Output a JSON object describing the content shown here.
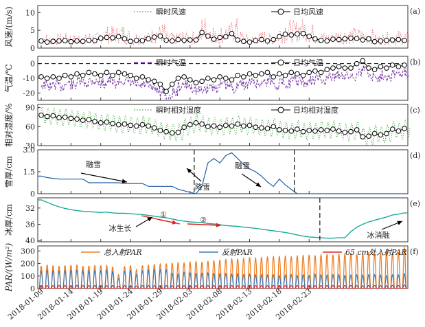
{
  "chart_data": [
    {
      "id": "a",
      "type": "line",
      "label": "(a)",
      "ylabel": "风速/(m/s)",
      "yticks": [
        "0",
        "5",
        "10"
      ],
      "ylim": [
        0,
        12
      ],
      "series": [
        {
          "name": "瞬时风速",
          "color": "#e0404a",
          "style": "dotted"
        },
        {
          "name": "日均风速",
          "color": "#000000",
          "style": "line-circle",
          "values": [
            2.0,
            1.7,
            1.9,
            2.0,
            2.1,
            1.8,
            2.0,
            1.9,
            2.2,
            2.1,
            2.8,
            3.0,
            2.9,
            3.2,
            2.6,
            1.9,
            2.2,
            2.1,
            2.6,
            3.1,
            3.4,
            2.2,
            2.0,
            2.4,
            2.2,
            2.3,
            2.3,
            4.4,
            3.4,
            2.5,
            3.0,
            3.2,
            4.1,
            2.3,
            1.9,
            1.7,
            2.1,
            2.4,
            2.0,
            2.4,
            3.2,
            3.9,
            3.7,
            4.0,
            4.1,
            3.3,
            2.6,
            2.2,
            2.0,
            2.5,
            2.4,
            2.6,
            2.8,
            2.7,
            2.3,
            2.6,
            1.8,
            2.0,
            2.2,
            2.3,
            2.4,
            2.2
          ]
        }
      ]
    },
    {
      "id": "b",
      "type": "line",
      "label": "(b)",
      "ylabel": "气温/℃",
      "yticks": [
        "0",
        "-10",
        "-20"
      ],
      "ylim": [
        -25,
        5
      ],
      "series": [
        {
          "name": "瞬时气温",
          "color": "#7030a0",
          "style": "dashed"
        },
        {
          "name": "日均气温",
          "color": "#000000",
          "style": "line-circle",
          "values": [
            -9,
            -10,
            -9,
            -10,
            -8,
            -9,
            -7,
            -8,
            -6,
            -7,
            -8,
            -6,
            -8,
            -6,
            -7,
            -8,
            -10,
            -9,
            -11,
            -12,
            -14,
            -19,
            -14,
            -10,
            -9,
            -11,
            -13,
            -12,
            -10,
            -11,
            -9,
            -10,
            -11,
            -8,
            -9,
            -7,
            -8,
            -7,
            -6,
            -9,
            -7,
            -8,
            -6,
            -7,
            -8,
            -6,
            -5,
            -6,
            -4,
            -3,
            -2,
            -3,
            -3,
            0,
            2,
            -3,
            -4,
            -2,
            -3,
            -1,
            -2,
            -1
          ]
        }
      ]
    },
    {
      "id": "c",
      "type": "line",
      "label": "(c)",
      "ylabel": "相对湿度/%",
      "yticks": [
        "30",
        "60",
        "90"
      ],
      "ylim": [
        30,
        95
      ],
      "series": [
        {
          "name": "瞬时相对湿度",
          "color": "#2ca02c",
          "style": "dotted"
        },
        {
          "name": "日均相对湿度",
          "color": "#000000",
          "style": "line-circle",
          "values": [
            78,
            76,
            77,
            74,
            75,
            73,
            72,
            70,
            71,
            68,
            66,
            67,
            65,
            63,
            64,
            62,
            61,
            63,
            61,
            58,
            54,
            52,
            50,
            51,
            59,
            63,
            66,
            64,
            60,
            61,
            59,
            62,
            61,
            64,
            61,
            62,
            59,
            58,
            57,
            60,
            55,
            54,
            53,
            56,
            52,
            54,
            53,
            55,
            54,
            56,
            53,
            51,
            52,
            55,
            44,
            45,
            49,
            47,
            49,
            56,
            53,
            57
          ]
        }
      ]
    },
    {
      "id": "d",
      "type": "line",
      "label": "(d)",
      "ylabel": "雪厚/cm",
      "yticks": [
        "0",
        "1.5",
        "3.0"
      ],
      "ylim": [
        0,
        3.0
      ],
      "series": [
        {
          "name": "",
          "color": "#1f5fa5",
          "style": "line",
          "values": [
            1.2,
            1.1,
            1.05,
            1.0,
            1.0,
            1.0,
            1.0,
            1.0,
            0.75,
            0.75,
            0.75,
            0.75,
            0.75,
            0.75,
            0.7,
            0.7,
            0.7,
            0.7,
            0.5,
            0.5,
            0.5,
            0.5,
            0.5,
            0.3,
            0.2,
            0.1,
            0.0,
            0.5,
            2.1,
            2.4,
            2.1,
            2.6,
            2.8,
            2.4,
            2.0,
            1.7,
            1.5,
            1.2,
            0.8,
            0.5,
            1.0,
            0.6,
            0.3,
            0.0,
            0.0,
            0.0,
            0.0,
            0.0,
            0.0,
            0.0,
            0.0,
            0.0,
            0.0,
            0.0,
            0.0,
            0.0,
            0.0,
            0.0,
            0.0,
            0.0,
            0.0,
            0.0
          ]
        }
      ],
      "annotations": [
        "融雪",
        "降雪",
        "融雪"
      ]
    },
    {
      "id": "e",
      "type": "line",
      "label": "(e)",
      "ylabel": "冰厚/cm",
      "yticks": [
        "32",
        "36",
        "40"
      ],
      "ylim": [
        29.5,
        40.3
      ],
      "series": [
        {
          "name": "",
          "color": "#1aaa96",
          "style": "line",
          "values": [
            30.0,
            30.6,
            31.2,
            31.7,
            32.1,
            32.4,
            32.6,
            32.8,
            32.9,
            33.0,
            33.1,
            33.0,
            33.2,
            33.3,
            33.3,
            33.4,
            33.5,
            33.6,
            33.8,
            34.0,
            34.2,
            34.4,
            34.7,
            35.0,
            35.2,
            35.4,
            35.5,
            35.6,
            35.8,
            35.9,
            36.1,
            36.3,
            36.4,
            36.5,
            36.7,
            36.8,
            37.0,
            37.2,
            37.4,
            37.6,
            37.8,
            38.0,
            38.3,
            38.6,
            38.9,
            39.1,
            39.2,
            39.3,
            39.4,
            39.4,
            39.3,
            39.3,
            37.8,
            36.7,
            36.0,
            35.4,
            35.0,
            34.6,
            34.2,
            33.7,
            33.5,
            33.2
          ]
        }
      ],
      "annotations": [
        "①",
        "②",
        "冰生长",
        "冰消融"
      ]
    },
    {
      "id": "f",
      "type": "line",
      "label": "(f)",
      "ylabel": "PAR/(W/m²)",
      "yticks": [
        "0",
        "100",
        "200",
        "300"
      ],
      "ylim": [
        0,
        340
      ],
      "series": [
        {
          "name": "总入射PAR",
          "color": "#ee7f22",
          "style": "line",
          "values": [
            180,
            190,
            185,
            180,
            185,
            188,
            190,
            180,
            182,
            186,
            185,
            188,
            175,
            110,
            178,
            185,
            150,
            185,
            190,
            195,
            200,
            200,
            205,
            210,
            208,
            215,
            218,
            212,
            220,
            225,
            230,
            235,
            240,
            238,
            245,
            250,
            248,
            252,
            255,
            258,
            260,
            262,
            256,
            265,
            268,
            270,
            265,
            272,
            275,
            270,
            278,
            280,
            285,
            275,
            285,
            290,
            280,
            285,
            290,
            285,
            290,
            330
          ]
        },
        {
          "name": "反射PAR",
          "color": "#3a78b8",
          "style": "line",
          "values": [
            140,
            145,
            142,
            140,
            142,
            145,
            146,
            140,
            140,
            143,
            142,
            144,
            135,
            80,
            137,
            142,
            110,
            140,
            145,
            150,
            150,
            148,
            120,
            115,
            130,
            125,
            120,
            122,
            125,
            120,
            118,
            120,
            115,
            118,
            112,
            115,
            110,
            112,
            108,
            110,
            105,
            108,
            112,
            106,
            110,
            105,
            115,
            110,
            108,
            112,
            110,
            105,
            108,
            110,
            108,
            112,
            110,
            108,
            105,
            110,
            108,
            120
          ]
        },
        {
          "name": "65 cm处入射PAR",
          "color": "#e02020",
          "style": "line",
          "values": [
            25,
            25,
            25,
            25,
            26,
            25,
            26,
            25,
            25,
            25,
            25,
            26,
            25,
            20,
            25,
            25,
            22,
            25,
            26,
            25,
            24,
            25,
            24,
            25,
            24,
            26,
            25,
            24,
            25,
            26,
            25,
            24,
            25,
            25,
            24,
            26,
            25,
            25,
            24,
            26,
            25,
            25,
            24,
            26,
            25,
            25,
            24,
            25,
            26,
            25,
            24,
            25,
            26,
            25,
            24,
            26,
            25,
            25,
            24,
            26,
            25,
            30
          ]
        }
      ]
    }
  ],
  "xaxis": {
    "ticks": [
      "2018-01-09",
      "2018-01-14",
      "2018-01-19",
      "2018-01-24",
      "2018-01-29",
      "2018-02-03",
      "2018-02-08",
      "2018-02-13",
      "2018-02-18",
      "2018-02-23"
    ]
  }
}
